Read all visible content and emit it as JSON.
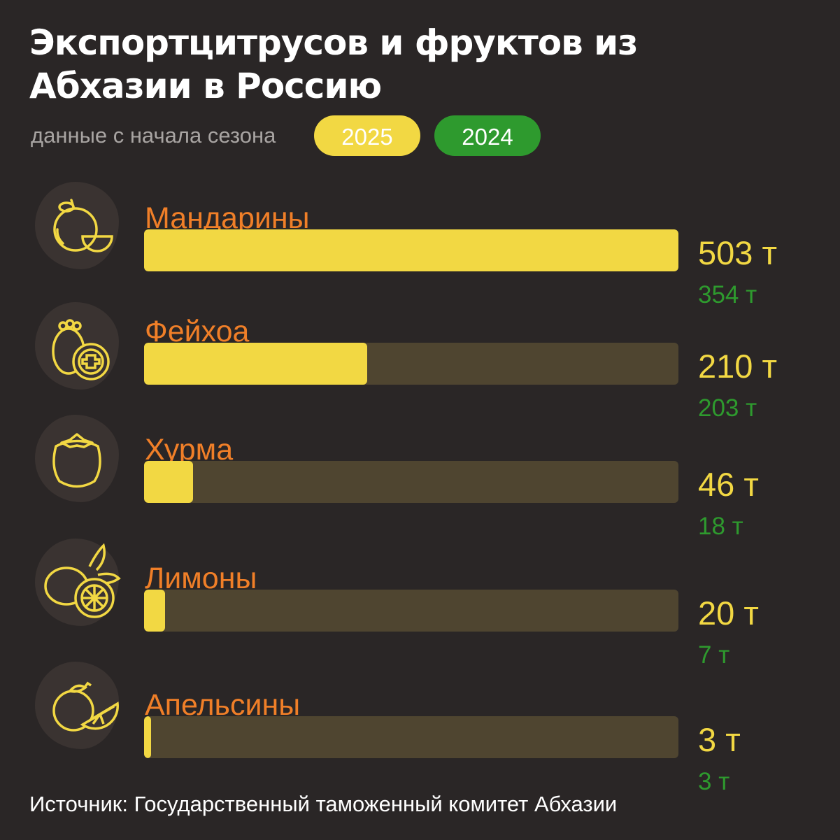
{
  "title": "Экспортцитрусов и фруктов из Абхазии в Россию",
  "subtitle": "данные с начала сезона",
  "legend": [
    {
      "label": "2025",
      "color": "#f2d843"
    },
    {
      "label": "2024",
      "color": "#2e9a2e"
    }
  ],
  "colors": {
    "background": "#2a2626",
    "track": "#4f4530",
    "bar": "#f2d843",
    "label": "#f07f28"
  },
  "chart_data": {
    "type": "bar",
    "orientation": "horizontal",
    "categories": [
      "Мандарины",
      "Фейхоа",
      "Хурма",
      "Лимоны",
      "Апельсины"
    ],
    "icons": [
      "tangerine-icon",
      "feijoa-icon",
      "persimmon-icon",
      "lemon-icon",
      "orange-icon"
    ],
    "series": [
      {
        "name": "2025",
        "values": [
          503,
          210,
          46,
          20,
          3
        ],
        "labels": [
          "503 т",
          "210 т",
          "46 т",
          "20 т",
          "3 т"
        ]
      },
      {
        "name": "2024",
        "values": [
          354,
          203,
          18,
          7,
          3
        ],
        "labels": [
          "354 т",
          "203 т",
          "18 т",
          "7 т",
          "3 т"
        ]
      }
    ],
    "unit": "т",
    "xlim": [
      0,
      503
    ]
  },
  "source": "Источник: Государственный таможенный комитет Абхазии"
}
